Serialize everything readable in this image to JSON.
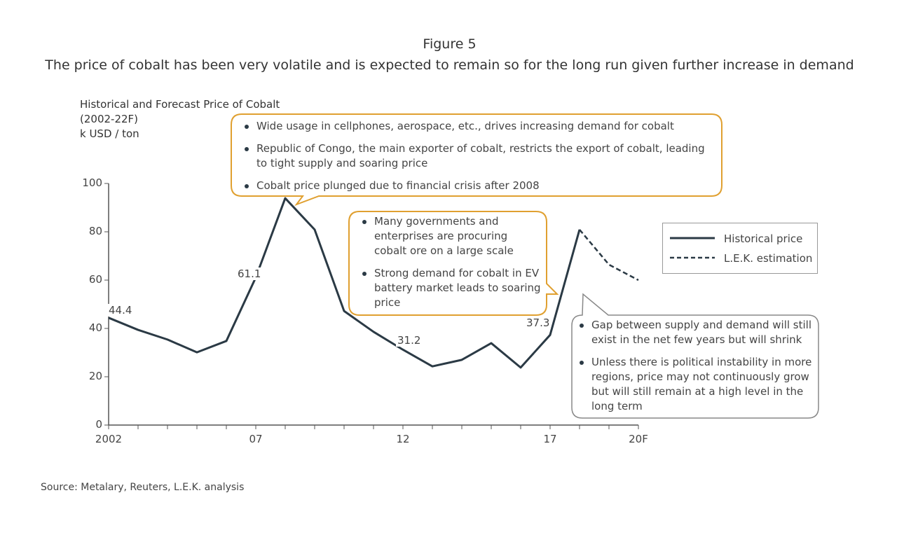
{
  "figure_label": "Figure 5",
  "headline": "The price of cobalt has been very volatile and is expected to remain so for the long run given further increase in demand",
  "source": "Source: Metalary, Reuters, L.E.K. analysis",
  "chart_data": {
    "type": "line",
    "title": "Historical and Forecast Price of Cobalt",
    "subtitle": "(2002-22F)",
    "ylabel": "k USD / ton",
    "xlabel": "",
    "ylim": [
      0,
      100
    ],
    "yticks": [
      "0",
      "20",
      "40",
      "60",
      "80",
      "100"
    ],
    "x": [
      2002,
      2003,
      2004,
      2005,
      2006,
      2007,
      2008,
      2009,
      2010,
      2011,
      2012,
      2013,
      2014,
      2015,
      2016,
      2017,
      2018,
      2019,
      2020
    ],
    "xtick_labels": {
      "2002": "2002",
      "2007": "07",
      "2012": "12",
      "2017": "17",
      "2020": "20F"
    },
    "grid": false,
    "legend_position": "right",
    "series": [
      {
        "name": "Historical price",
        "style": "solid",
        "color": "#2b3a45",
        "x": [
          2002,
          2003,
          2004,
          2005,
          2006,
          2007,
          2008,
          2009,
          2010,
          2011,
          2012,
          2013,
          2014,
          2015,
          2016,
          2017,
          2018
        ],
        "values": [
          44.4,
          39.4,
          35.4,
          30.1,
          34.8,
          61.1,
          93.9,
          80.9,
          47.2,
          38.6,
          31.2,
          24.3,
          27.0,
          33.9,
          23.8,
          37.3,
          80.9
        ]
      },
      {
        "name": "L.E.K. estimation",
        "style": "dashed",
        "color": "#2b3a45",
        "x": [
          2018,
          2019,
          2020
        ],
        "values": [
          80.9,
          66.4,
          60.0
        ]
      }
    ],
    "data_labels": [
      {
        "x": 2002,
        "text": "44.4"
      },
      {
        "x": 2007,
        "text": "61.1"
      },
      {
        "x": 2012,
        "text": "31.2"
      },
      {
        "x": 2017,
        "text": "37.3"
      }
    ],
    "annotations": [
      {
        "color": "#e0a030",
        "bullets": [
          "Wide usage in cellphones, aerospace, etc., drives increasing demand for cobalt",
          "Republic of Congo, the main exporter of cobalt, restricts the export of cobalt, leading to tight supply and soaring price",
          "Cobalt price plunged due to financial crisis after 2008"
        ]
      },
      {
        "color": "#e0a030",
        "bullets": [
          "Many governments and enterprises are procuring cobalt ore on a large scale",
          "Strong demand for cobalt in EV battery market leads to soaring price"
        ]
      },
      {
        "color": "#888888",
        "bullets": [
          "Gap between supply and demand will still exist in the net few years but will shrink",
          "Unless there is political instability in more regions, price may not continuously grow but will still remain at a high level in the long term"
        ]
      }
    ]
  }
}
